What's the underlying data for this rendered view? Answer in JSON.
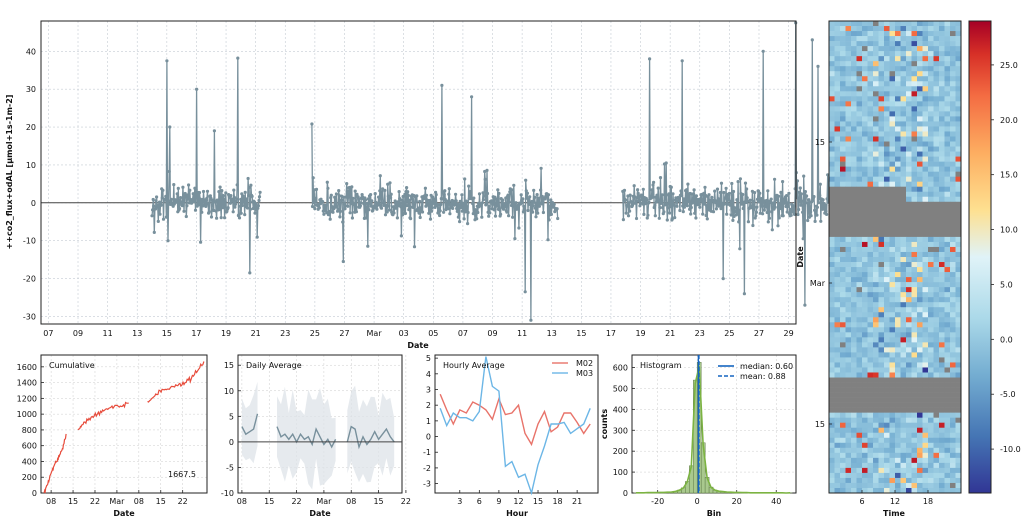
{
  "chart_data": [
    {
      "id": "timeseries",
      "type": "line",
      "xlabel": "Date",
      "ylabel": "++co2_flux+odAL [µmol+1s-1m-2]",
      "ylim": [
        -32,
        48
      ],
      "yticks": [
        -30,
        -20,
        -10,
        0,
        10,
        20,
        30,
        40
      ],
      "xticks": [
        "07",
        "09",
        "11",
        "13",
        "15",
        "17",
        "19",
        "21",
        "23",
        "25",
        "27",
        "Mar",
        "03",
        "05",
        "07",
        "09",
        "11",
        "13",
        "15",
        "17",
        "19",
        "21",
        "23",
        "25",
        "27",
        "29"
      ],
      "x_range_days": [
        "Feb 06",
        "Mar 30"
      ],
      "series_color": "#78909c",
      "segments": [
        {
          "start_day": 8.0,
          "end_day": 15.3,
          "spikes": [
            [
              9.0,
              37.5
            ],
            [
              9.2,
              20.0
            ],
            [
              11.0,
              30.0
            ],
            [
              13.8,
              38.2
            ],
            [
              14.6,
              40.5
            ],
            [
              14.6,
              -18.5
            ],
            [
              12.2,
              19.0
            ],
            [
              9.1,
              -10.0
            ]
          ]
        },
        {
          "start_day": 18.8,
          "end_day": 35.4,
          "spikes": [
            [
              18.8,
              20.8
            ],
            [
              27.6,
              31.0
            ],
            [
              29.6,
              28.0
            ],
            [
              33.2,
              -20.0
            ],
            [
              33.2,
              -23.5
            ],
            [
              33.6,
              -31.0
            ],
            [
              20.9,
              -15.5
            ]
          ]
        },
        {
          "start_day": 39.8,
          "end_day": 55.8,
          "spikes": [
            [
              41.6,
              38.0
            ],
            [
              43.8,
              37.5
            ],
            [
              49.3,
              40.0
            ],
            [
              51.5,
              47.5
            ],
            [
              52.1,
              -27.0
            ],
            [
              52.6,
              43.0
            ],
            [
              53.0,
              36.0
            ],
            [
              54.5,
              -29.5
            ],
            [
              48.0,
              -24.0
            ],
            [
              46.6,
              -20.0
            ]
          ]
        }
      ]
    },
    {
      "id": "cumulative",
      "type": "line",
      "title": "Cumulative",
      "xlabel": "Date",
      "annotation": "1667.5",
      "ylim": [
        0,
        1750
      ],
      "yticks": [
        0,
        200,
        400,
        600,
        800,
        1000,
        1200,
        1400,
        1600
      ],
      "xticks": [
        "08",
        "15",
        "22",
        "Mar",
        "08",
        "15",
        "22"
      ],
      "color": "#e74c3c",
      "points": [
        [
          0,
          0
        ],
        [
          1,
          100
        ],
        [
          2,
          230
        ],
        [
          3,
          330
        ],
        [
          4,
          400
        ],
        [
          5,
          490
        ],
        [
          6,
          560
        ],
        [
          7,
          750
        ],
        [
          10.8,
          800
        ],
        [
          12,
          860
        ],
        [
          13,
          900
        ],
        [
          15,
          960
        ],
        [
          17,
          1000
        ],
        [
          19,
          1040
        ],
        [
          21,
          1080
        ],
        [
          23,
          1110
        ],
        [
          25,
          1100
        ],
        [
          27,
          1140
        ],
        [
          30,
          1110
        ],
        [
          33,
          1160
        ],
        [
          35,
          1220
        ],
        [
          37,
          1300
        ],
        [
          39,
          1310
        ],
        [
          41,
          1350
        ],
        [
          43,
          1380
        ],
        [
          45,
          1400
        ],
        [
          47,
          1450
        ],
        [
          49,
          1550
        ],
        [
          51,
          1667.5
        ]
      ]
    },
    {
      "id": "daily",
      "type": "line",
      "title": "Daily Average",
      "xlabel": "Date",
      "ylim": [
        -10,
        17
      ],
      "yticks": [
        -10,
        -5,
        0,
        5,
        10,
        15
      ],
      "xticks": [
        "08",
        "15",
        "22",
        "Mar",
        "08",
        "15",
        "22"
      ],
      "color": "#78909c",
      "points": [
        [
          0,
          3.0
        ],
        [
          1,
          1.5
        ],
        [
          2,
          2.0
        ],
        [
          3,
          2.5
        ],
        [
          4,
          5.5
        ],
        [
          5,
          2.0
        ],
        [
          9,
          3.0
        ],
        [
          10,
          1.0
        ],
        [
          11,
          1.5
        ],
        [
          12,
          0.5
        ],
        [
          13,
          1.5
        ],
        [
          14,
          0.0
        ],
        [
          15,
          1.5
        ],
        [
          16,
          0.5
        ],
        [
          17,
          1.0
        ],
        [
          18,
          -0.5
        ],
        [
          19,
          2.5
        ],
        [
          20,
          1.0
        ],
        [
          21,
          -0.5
        ],
        [
          22,
          0.5
        ],
        [
          23,
          -1.0
        ],
        [
          24,
          0.5
        ],
        [
          27,
          0.0
        ],
        [
          28,
          3.0
        ],
        [
          29,
          2.5
        ],
        [
          30,
          -1.0
        ],
        [
          31,
          1.0
        ],
        [
          32,
          -0.5
        ],
        [
          33,
          0.5
        ],
        [
          34,
          2.0
        ],
        [
          35,
          0.5
        ],
        [
          36,
          1.5
        ],
        [
          37,
          2.5
        ],
        [
          38,
          1.0
        ],
        [
          39,
          0.0
        ]
      ]
    },
    {
      "id": "hourly",
      "type": "line",
      "title": "Hourly Average",
      "xlabel": "Hour",
      "ylim": [
        -3.6,
        5.2
      ],
      "yticks": [
        -3,
        -2,
        -1,
        0,
        1,
        2,
        3,
        4,
        5
      ],
      "xticks": [
        3,
        6,
        9,
        12,
        15,
        18,
        21
      ],
      "series": [
        {
          "name": "M02",
          "color": "#e8736a",
          "values": [
            2.7,
            1.7,
            0.8,
            1.7,
            1.5,
            2.2,
            2.0,
            1.7,
            1.1,
            2.4,
            1.4,
            1.5,
            2.0,
            0.2,
            -0.5,
            0.8,
            1.6,
            0.3,
            0.6,
            1.5,
            1.5,
            0.9,
            0.2,
            0.8
          ]
        },
        {
          "name": "M03",
          "color": "#6cb6e6",
          "values": [
            1.8,
            0.7,
            1.5,
            1.2,
            1.2,
            1.0,
            1.6,
            5.1,
            3.2,
            2.9,
            -1.9,
            -1.6,
            -2.6,
            -2.4,
            -3.6,
            -1.8,
            -0.6,
            0.8,
            0.8,
            0.9,
            0.2,
            0.5,
            0.8,
            1.8
          ]
        }
      ]
    },
    {
      "id": "histogram",
      "type": "bar",
      "title": "Histogram",
      "xlabel": "Bin",
      "ylabel": "counts",
      "ylim": [
        0,
        660
      ],
      "yticks": [
        0,
        100,
        200,
        300,
        400,
        500,
        600
      ],
      "xticks": [
        -20,
        0,
        20,
        40
      ],
      "xlim": [
        -33,
        50
      ],
      "bin_width": 2,
      "bin_starts": [
        -32,
        -30,
        -28,
        -26,
        -24,
        -22,
        -20,
        -18,
        -16,
        -14,
        -12,
        -10,
        -8,
        -6,
        -4,
        -2,
        0,
        2,
        4,
        6,
        8,
        10,
        12,
        14,
        16,
        18,
        20,
        22,
        24,
        26,
        28,
        30,
        32,
        34,
        36,
        38,
        40,
        42,
        44,
        46
      ],
      "counts": [
        1,
        1,
        1,
        2,
        2,
        2,
        3,
        3,
        4,
        5,
        8,
        14,
        25,
        55,
        130,
        540,
        625,
        240,
        75,
        28,
        14,
        9,
        7,
        5,
        4,
        3,
        3,
        2,
        2,
        1,
        1,
        1,
        1,
        1,
        1,
        1,
        1,
        1,
        0,
        1
      ],
      "kde_color": "#7cb342",
      "bar_color": "#a9c98e",
      "legend": [
        {
          "label": "median: 0.60",
          "value": 0.6,
          "style": "solid",
          "color": "#1565c0"
        },
        {
          "label": "mean: 0.88",
          "value": 0.88,
          "style": "dashed",
          "color": "#1565c0"
        }
      ]
    },
    {
      "id": "heatmap",
      "type": "heatmap",
      "xlabel": "Time",
      "ylabel": "Date",
      "xticks": [
        6,
        12,
        18
      ],
      "yticks": [
        "15",
        "Mar",
        "15"
      ],
      "colorbar_ticks": [
        -10.0,
        -5.0,
        0.0,
        5.0,
        10.0,
        15.0,
        20.0,
        25.0
      ],
      "vmin": -14,
      "vmax": 29,
      "missing_rows": [
        [
          33,
          42,
          "half"
        ],
        [
          71,
          77,
          "full"
        ]
      ],
      "missing_color": "#808080",
      "colormap": "RdYlBu_r"
    }
  ]
}
